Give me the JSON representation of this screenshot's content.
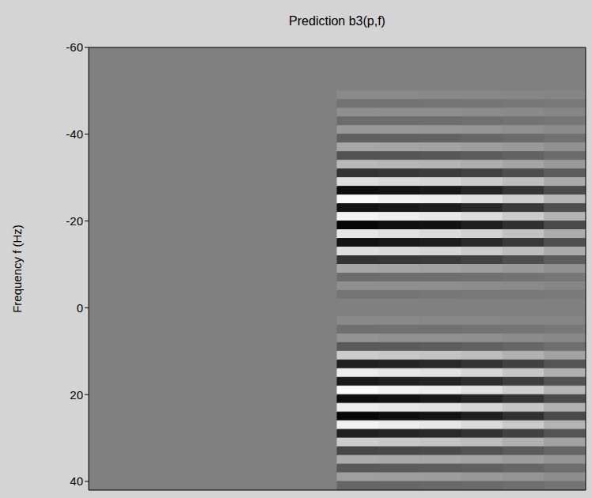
{
  "chart_data": {
    "type": "heatmap",
    "title": "Prediction b3(p,f)",
    "y_label": "Frequency f (Hz)",
    "tick_labels": "y",
    "xlim": [
      0,
      60
    ],
    "ylim": [
      -60,
      42
    ],
    "yticks": [
      -60,
      -40,
      -20,
      0,
      20,
      40
    ],
    "zlim": [
      -1,
      1
    ],
    "x": [
      32.5,
      37.5,
      42.5,
      47.5,
      52.5,
      57.5
    ],
    "y": [
      -49,
      -47,
      -45,
      -43,
      -41,
      -39,
      -37,
      -35,
      -33,
      -31,
      -29,
      -27,
      -25,
      -23,
      -21,
      -19,
      -17,
      -15,
      -13,
      -11,
      -9,
      -7,
      -5,
      -3,
      -1,
      1,
      3,
      5,
      7,
      9,
      11,
      13,
      15,
      17,
      19,
      21,
      23,
      25,
      27,
      29,
      31,
      33,
      35,
      37,
      39,
      41
    ],
    "z": [
      [
        0.08,
        0.08,
        0.07,
        0.06,
        0.05,
        0.04
      ],
      [
        -0.1,
        -0.1,
        -0.09,
        -0.08,
        -0.07,
        -0.05
      ],
      [
        0.12,
        0.11,
        0.11,
        0.1,
        0.08,
        0.05
      ],
      [
        -0.15,
        -0.14,
        -0.14,
        -0.12,
        -0.1,
        -0.07
      ],
      [
        0.2,
        0.19,
        0.18,
        0.16,
        0.13,
        0.09
      ],
      [
        -0.25,
        -0.24,
        -0.23,
        -0.2,
        -0.16,
        -0.11
      ],
      [
        0.3,
        0.29,
        0.27,
        0.24,
        0.2,
        0.14
      ],
      [
        -0.35,
        -0.33,
        -0.32,
        -0.28,
        -0.23,
        -0.16
      ],
      [
        0.45,
        0.43,
        0.41,
        0.36,
        0.29,
        0.2
      ],
      [
        -0.6,
        -0.57,
        -0.54,
        -0.48,
        -0.39,
        -0.27
      ],
      [
        0.75,
        0.71,
        0.68,
        0.6,
        0.49,
        0.34
      ],
      [
        -0.9,
        -0.86,
        -0.81,
        -0.72,
        -0.59,
        -0.41
      ],
      [
        0.95,
        0.9,
        0.86,
        0.76,
        0.62,
        0.43
      ],
      [
        -0.85,
        -0.81,
        -0.77,
        -0.68,
        -0.55,
        -0.38
      ],
      [
        0.9,
        0.86,
        0.81,
        0.72,
        0.59,
        0.41
      ],
      [
        -0.95,
        -0.9,
        -0.86,
        -0.76,
        -0.62,
        -0.43
      ],
      [
        0.8,
        0.76,
        0.72,
        0.64,
        0.52,
        0.36
      ],
      [
        -0.85,
        -0.81,
        -0.77,
        -0.68,
        -0.55,
        -0.38
      ],
      [
        0.75,
        0.71,
        0.68,
        0.6,
        0.49,
        0.34
      ],
      [
        -0.6,
        -0.57,
        -0.54,
        -0.48,
        -0.39,
        -0.27
      ],
      [
        0.3,
        0.29,
        0.27,
        0.24,
        0.2,
        0.14
      ],
      [
        -0.15,
        -0.14,
        -0.14,
        -0.12,
        -0.1,
        -0.07
      ],
      [
        0.12,
        0.11,
        0.11,
        0.1,
        0.08,
        0.05
      ],
      [
        -0.08,
        -0.08,
        -0.07,
        -0.06,
        -0.05,
        -0.04
      ],
      [
        0,
        0,
        0,
        0,
        0,
        0
      ],
      [
        0,
        0,
        0,
        0,
        0,
        0
      ],
      [
        0.08,
        0.08,
        0.07,
        0.06,
        0.05,
        0.04
      ],
      [
        -0.12,
        -0.11,
        -0.11,
        -0.1,
        -0.08,
        -0.05
      ],
      [
        0.15,
        0.14,
        0.14,
        0.12,
        0.1,
        0.07
      ],
      [
        -0.3,
        -0.29,
        -0.27,
        -0.24,
        -0.2,
        -0.14
      ],
      [
        0.6,
        0.57,
        0.54,
        0.48,
        0.39,
        0.27
      ],
      [
        -0.75,
        -0.71,
        -0.68,
        -0.6,
        -0.49,
        -0.34
      ],
      [
        0.85,
        0.81,
        0.77,
        0.68,
        0.55,
        0.38
      ],
      [
        -0.8,
        -0.76,
        -0.72,
        -0.64,
        -0.52,
        -0.36
      ],
      [
        0.95,
        0.9,
        0.86,
        0.76,
        0.62,
        0.43
      ],
      [
        -0.9,
        -0.86,
        -0.81,
        -0.72,
        -0.59,
        -0.41
      ],
      [
        0.85,
        0.81,
        0.77,
        0.68,
        0.55,
        0.38
      ],
      [
        -0.95,
        -0.9,
        -0.86,
        -0.76,
        -0.62,
        -0.43
      ],
      [
        0.9,
        0.86,
        0.81,
        0.72,
        0.59,
        0.41
      ],
      [
        -0.75,
        -0.71,
        -0.68,
        -0.6,
        -0.49,
        -0.34
      ],
      [
        0.6,
        0.57,
        0.54,
        0.48,
        0.39,
        0.27
      ],
      [
        -0.45,
        -0.43,
        -0.41,
        -0.36,
        -0.29,
        -0.2
      ],
      [
        0.35,
        0.33,
        0.32,
        0.28,
        0.23,
        0.16
      ],
      [
        -0.3,
        -0.29,
        -0.27,
        -0.24,
        -0.2,
        -0.14
      ],
      [
        0.25,
        0.24,
        0.23,
        0.2,
        0.16,
        0.11
      ],
      [
        -0.2,
        -0.19,
        -0.18,
        -0.16,
        -0.13,
        -0.09
      ]
    ]
  }
}
